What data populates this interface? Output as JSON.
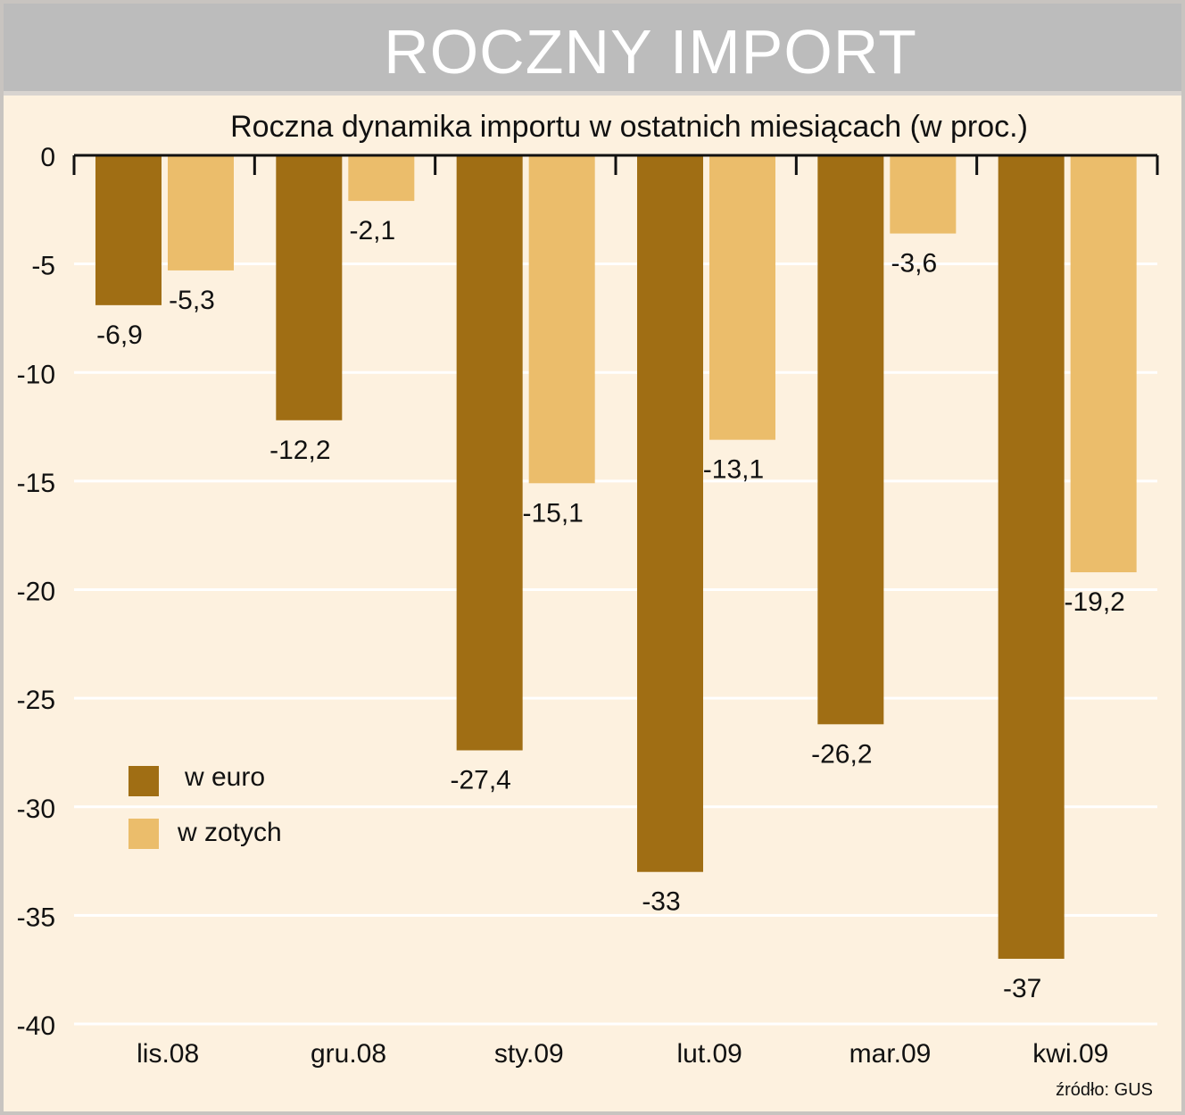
{
  "header": {
    "title": "ROCZNY IMPORT"
  },
  "source": "źródło: GUS",
  "colors": {
    "euro": "#a06e14",
    "zloty": "#ebbd6b",
    "background": "#fdf1df",
    "header": "#bcbcbc"
  },
  "chart_data": {
    "type": "bar",
    "title": "Roczna dynamika importu w ostatnich miesiącach (w proc.)",
    "categories": [
      "lis.08",
      "gru.08",
      "sty.09",
      "lut.09",
      "mar.09",
      "kwi.09"
    ],
    "series": [
      {
        "name": "w euro",
        "values": [
          -6.9,
          -12.2,
          -27.4,
          -33,
          -26.2,
          -37
        ],
        "labels": [
          "-6,9",
          "-12,2",
          "-27,4",
          "-33",
          "-26,2",
          "-37"
        ]
      },
      {
        "name": "w zotych",
        "values": [
          -5.3,
          -2.1,
          -15.1,
          -13.1,
          -3.6,
          -19.2
        ],
        "labels": [
          "-5,3",
          "-2,1",
          "-15,1",
          "-13,1",
          "-3,6",
          "-19,2"
        ]
      }
    ],
    "yticks": [
      0,
      -5,
      -10,
      -15,
      -20,
      -25,
      -30,
      -35,
      -40
    ],
    "ylim": [
      -40,
      0
    ],
    "grid": true,
    "legend": "left"
  }
}
